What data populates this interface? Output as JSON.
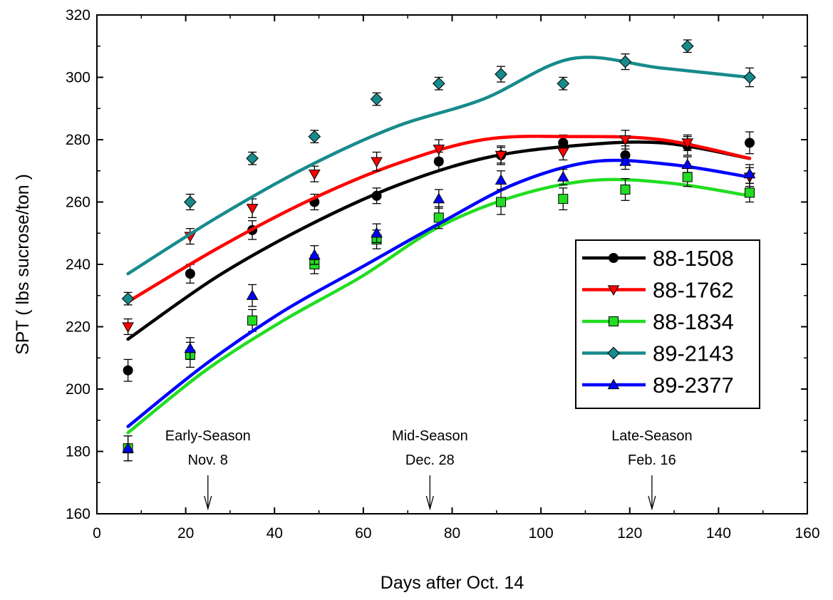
{
  "chart_data": {
    "type": "scatter",
    "xlabel": "Days after Oct. 14",
    "ylabel": "SPT ( lbs sucrose/ton )",
    "xlim": [
      0,
      160
    ],
    "ylim": [
      160,
      320
    ],
    "xticks": [
      0,
      20,
      40,
      60,
      80,
      100,
      120,
      140,
      160
    ],
    "yticks": [
      160,
      180,
      200,
      220,
      240,
      260,
      280,
      300,
      320
    ],
    "grid": false,
    "legend_position": "right",
    "fit": "quadratic",
    "series": [
      {
        "name": "88-1508",
        "color": "#000000",
        "marker": "circle",
        "x": [
          7,
          21,
          35,
          49,
          63,
          77,
          91,
          105,
          119,
          133,
          147
        ],
        "y": [
          206,
          237,
          251,
          260,
          262,
          273,
          275,
          279,
          275,
          278,
          279
        ],
        "err": [
          3.5,
          3,
          3,
          2.5,
          2.5,
          3,
          3,
          2.5,
          3,
          3,
          3.5
        ],
        "curve": [
          216,
          236,
          252,
          265,
          274,
          278,
          279,
          274
        ]
      },
      {
        "name": "88-1762",
        "color": "#ff0000",
        "marker": "triangle-down",
        "x": [
          7,
          21,
          35,
          49,
          63,
          77,
          91,
          105,
          119,
          133,
          147
        ],
        "y": [
          220,
          249,
          258,
          269,
          273,
          277,
          275,
          276,
          280,
          279,
          268
        ],
        "err": [
          2.5,
          2.5,
          3,
          2.5,
          3,
          3,
          2.5,
          2.5,
          3,
          2.5,
          3
        ],
        "curve": [
          228,
          245,
          260,
          272,
          280,
          281,
          280,
          274
        ]
      },
      {
        "name": "88-1834",
        "color": "#22dd22",
        "marker": "square",
        "x": [
          7,
          21,
          35,
          49,
          63,
          77,
          91,
          105,
          119,
          133,
          147
        ],
        "y": [
          181,
          211,
          222,
          240,
          248,
          255,
          260,
          261,
          264,
          268,
          263
        ],
        "err": [
          4,
          4,
          3.5,
          3,
          3,
          3.5,
          4,
          3.5,
          3.5,
          3,
          3
        ],
        "curve": [
          186,
          206,
          222,
          236,
          252,
          262,
          267,
          266,
          262
        ]
      },
      {
        "name": "89-2143",
        "color": "#178b8b",
        "marker": "diamond",
        "x": [
          7,
          21,
          35,
          49,
          63,
          77,
          91,
          105,
          119,
          133,
          147
        ],
        "y": [
          229,
          260,
          274,
          281,
          293,
          298,
          301,
          298,
          305,
          310,
          300
        ],
        "err": [
          2,
          2.5,
          2,
          2,
          2,
          2,
          2.5,
          2,
          2.5,
          2,
          3
        ],
        "curve": [
          237,
          255,
          271,
          284,
          293,
          306,
          303,
          300
        ]
      },
      {
        "name": "89-2377",
        "color": "#0000ff",
        "marker": "triangle-up",
        "x": [
          7,
          21,
          35,
          49,
          63,
          77,
          91,
          105,
          119,
          133,
          147
        ],
        "y": [
          181,
          213,
          230,
          243,
          250,
          261,
          267,
          268,
          273,
          272,
          269
        ],
        "err": [
          4,
          3.5,
          3.5,
          3,
          3,
          3,
          3,
          2.5,
          2.5,
          2.5,
          3
        ],
        "curve": [
          188,
          208,
          225,
          239,
          253,
          266,
          273,
          272,
          268
        ]
      }
    ],
    "annotations": [
      {
        "line1": "Early-Season",
        "line2": "Nov. 8",
        "x": 25
      },
      {
        "line1": "Mid-Season",
        "line2": "Dec. 28",
        "x": 75
      },
      {
        "line1": "Late-Season",
        "line2": "Feb. 16",
        "x": 125
      }
    ]
  }
}
